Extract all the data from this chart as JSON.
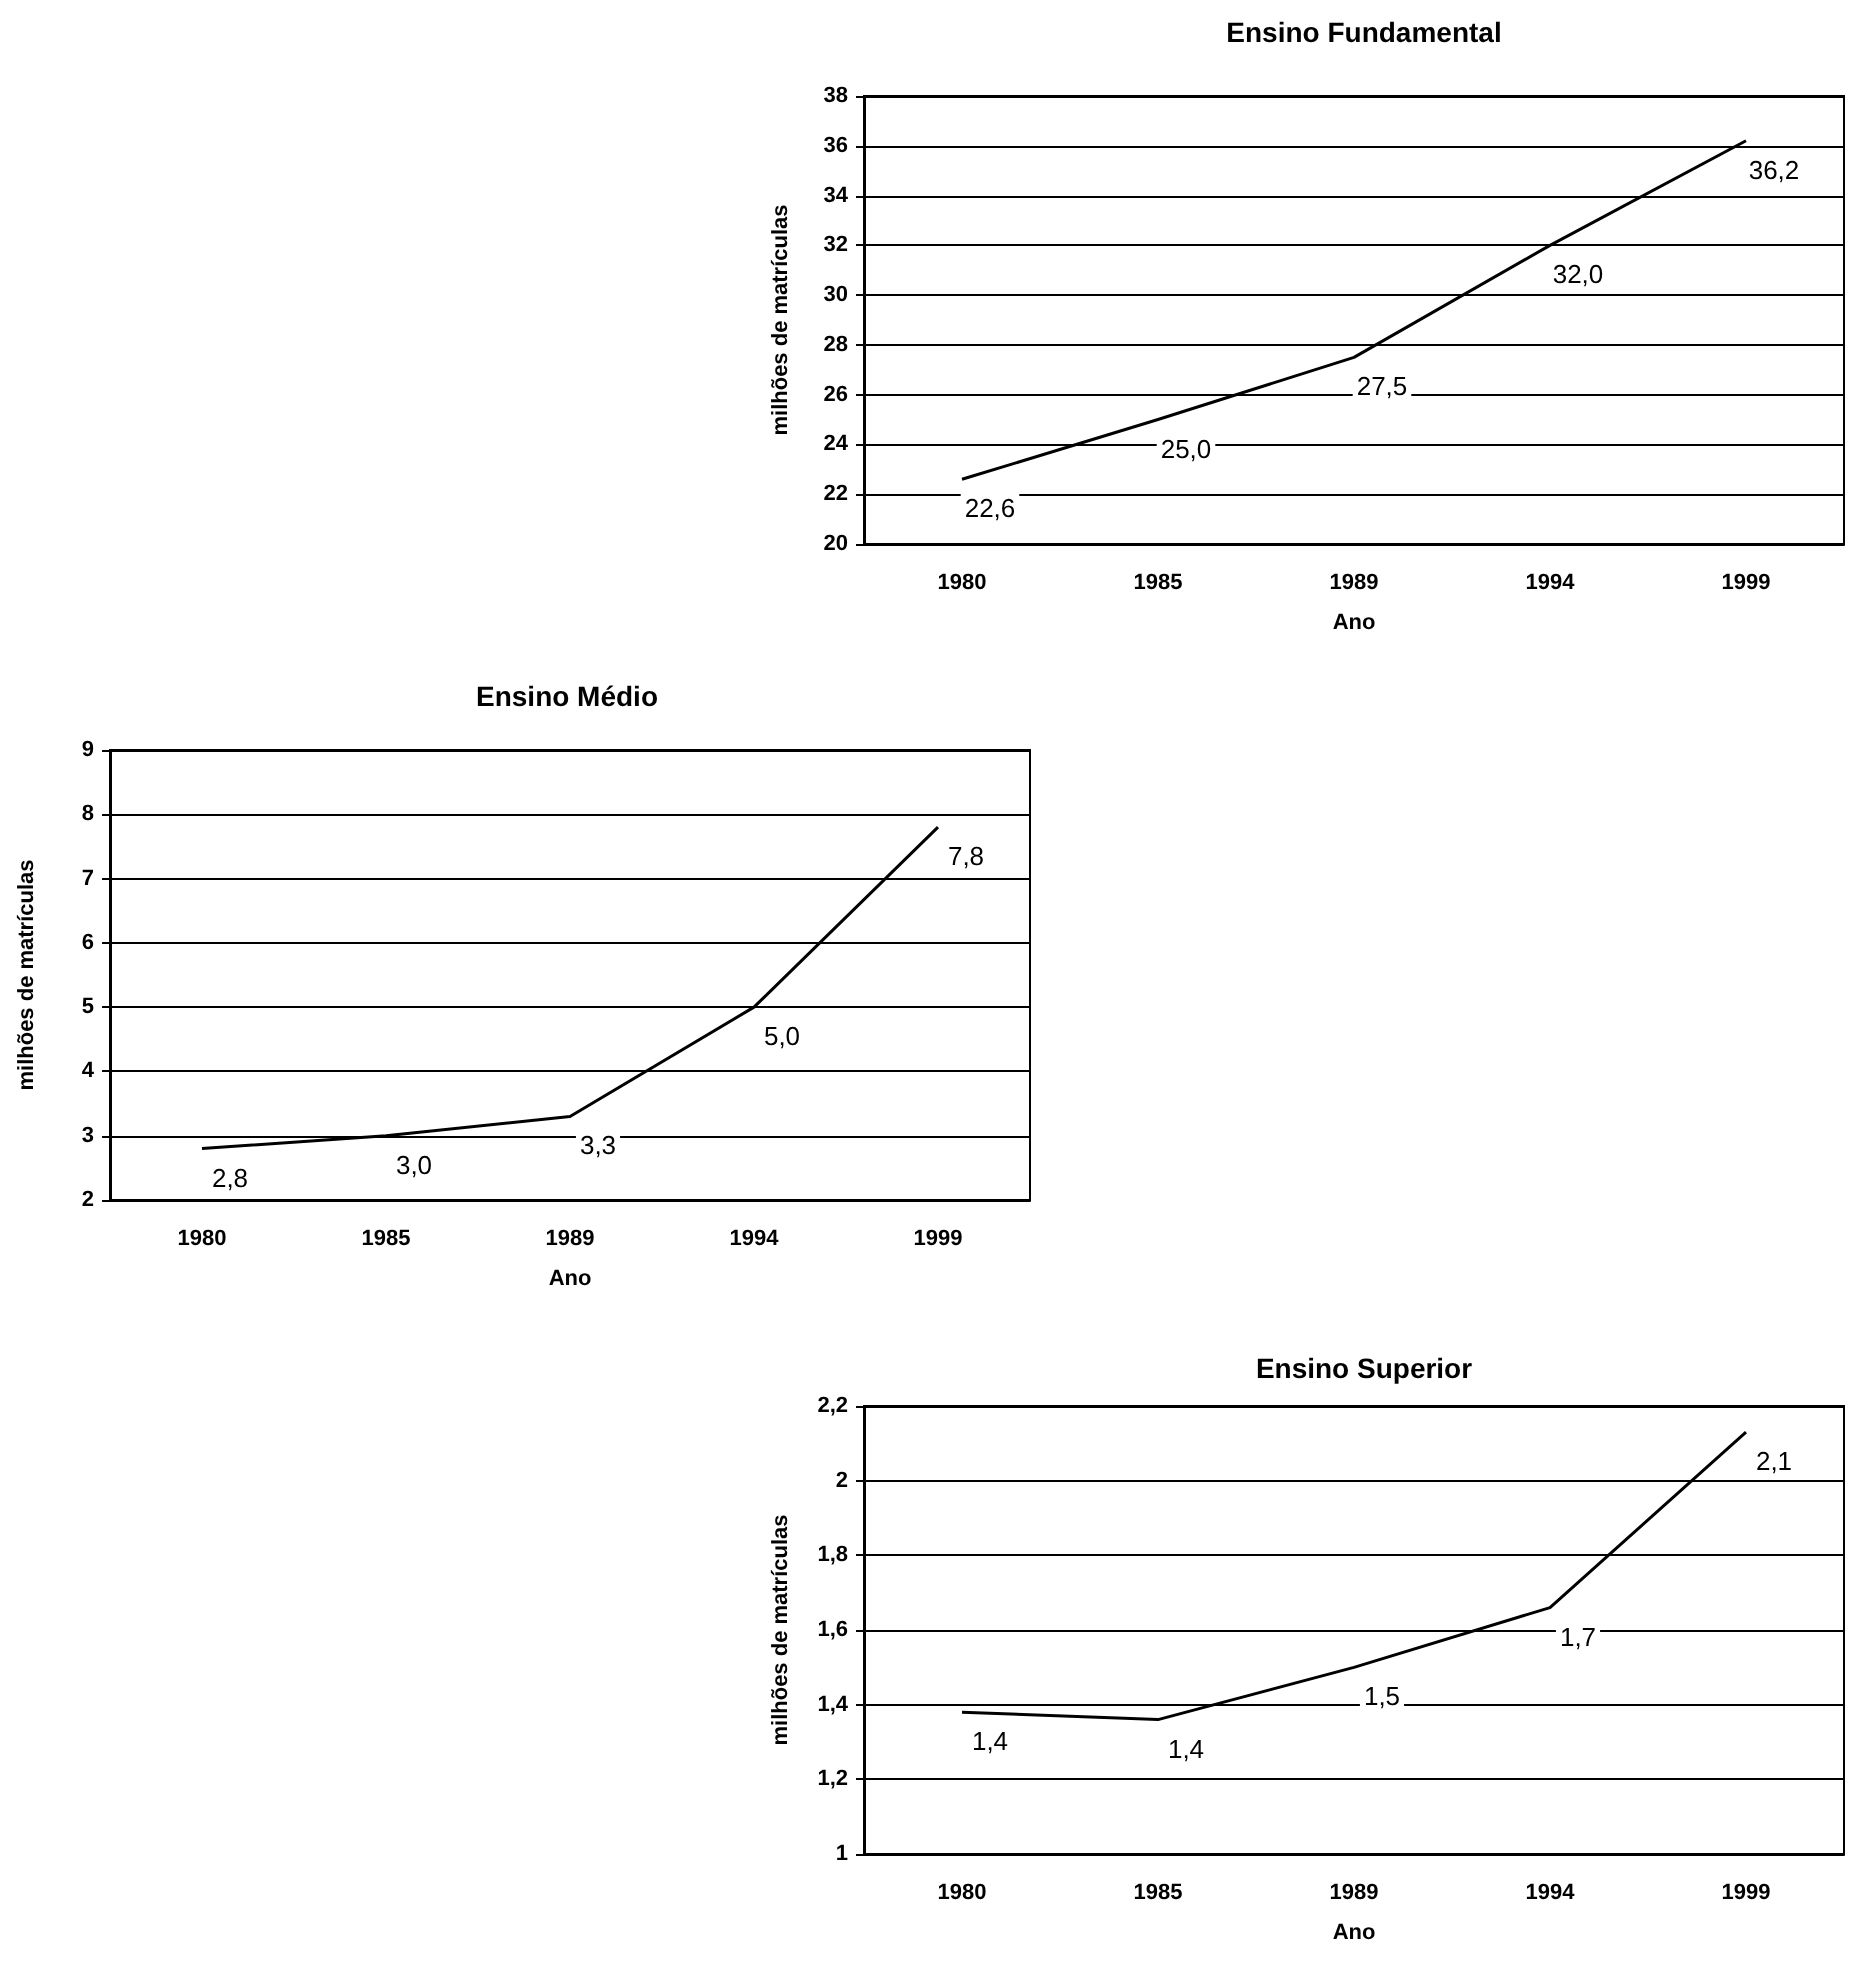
{
  "chart_data": [
    {
      "type": "line",
      "title": "Ensino Fundamental",
      "xlabel": "Ano",
      "ylabel": "milhões de matrículas",
      "categories": [
        "1980",
        "1985",
        "1989",
        "1994",
        "1999"
      ],
      "series": [
        {
          "color": "#000000",
          "values": [
            22.6,
            25.0,
            27.5,
            32.0,
            36.2
          ],
          "value_labels": [
            "22,6",
            "25,0",
            "27,5",
            "32,0",
            "36,2"
          ]
        }
      ],
      "ylim": [
        20,
        38
      ],
      "yticks": [
        20,
        22,
        24,
        26,
        28,
        30,
        32,
        34,
        36,
        38
      ],
      "grid": "y",
      "marker": "none",
      "line_style": "solid"
    },
    {
      "type": "line",
      "title": "Ensino Médio",
      "xlabel": "Ano",
      "ylabel": "milhões de matrículas",
      "categories": [
        "1980",
        "1985",
        "1989",
        "1994",
        "1999"
      ],
      "series": [
        {
          "color": "#000000",
          "values": [
            2.8,
            3.0,
            3.3,
            5.0,
            7.8
          ],
          "value_labels": [
            "2,8",
            "3,0",
            "3,3",
            "5,0",
            "7,8"
          ]
        }
      ],
      "ylim": [
        2,
        9
      ],
      "yticks": [
        2,
        3,
        4,
        5,
        6,
        7,
        8,
        9
      ],
      "grid": "y",
      "marker": "none",
      "line_style": "solid"
    },
    {
      "type": "line",
      "title": "Ensino Superior",
      "xlabel": "Ano",
      "ylabel": "milhões de matrículas",
      "categories": [
        "1980",
        "1985",
        "1989",
        "1994",
        "1999"
      ],
      "series": [
        {
          "color": "#000000",
          "values": [
            1.38,
            1.36,
            1.5,
            1.66,
            2.13
          ],
          "value_labels": [
            "1,4",
            "1,4",
            "1,5",
            "1,7",
            "2,1"
          ]
        }
      ],
      "ylim": [
        1,
        2.2
      ],
      "yticks": [
        1,
        {
          "value": 1.2,
          "label": "1,2"
        },
        {
          "value": 1.4,
          "label": "1,4"
        },
        {
          "value": 1.6,
          "label": "1,6"
        },
        {
          "value": 1.8,
          "label": "1,8"
        },
        2,
        {
          "value": 2.2,
          "label": "2,2"
        }
      ],
      "grid": "y",
      "marker": "none",
      "line_style": "solid"
    }
  ]
}
